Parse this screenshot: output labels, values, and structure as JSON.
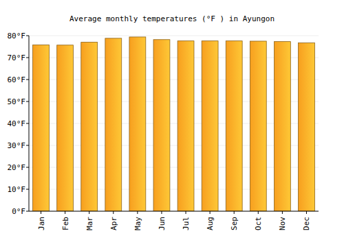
{
  "chart_data": {
    "type": "bar",
    "title": "Average monthly temperatures (°F ) in Ayungon",
    "categories": [
      "Jan",
      "Feb",
      "Mar",
      "Apr",
      "May",
      "Jun",
      "Jul",
      "Aug",
      "Sep",
      "Oct",
      "Nov",
      "Dec"
    ],
    "values": [
      75.8,
      75.7,
      77.0,
      78.8,
      79.4,
      78.2,
      77.6,
      77.6,
      77.6,
      77.5,
      77.3,
      76.7
    ],
    "color": "#fdb02c",
    "ylim": [
      0,
      80
    ],
    "yticks": [
      {
        "value": 0,
        "label": "0°F"
      },
      {
        "value": 10,
        "label": "10°F"
      },
      {
        "value": 20,
        "label": "20°F"
      },
      {
        "value": 30,
        "label": "30°F"
      },
      {
        "value": 40,
        "label": "40°F"
      },
      {
        "value": 50,
        "label": "50°F"
      },
      {
        "value": 60,
        "label": "60°F"
      },
      {
        "value": 70,
        "label": "70°F"
      },
      {
        "value": 80,
        "label": "80°F"
      }
    ],
    "grid": true
  }
}
